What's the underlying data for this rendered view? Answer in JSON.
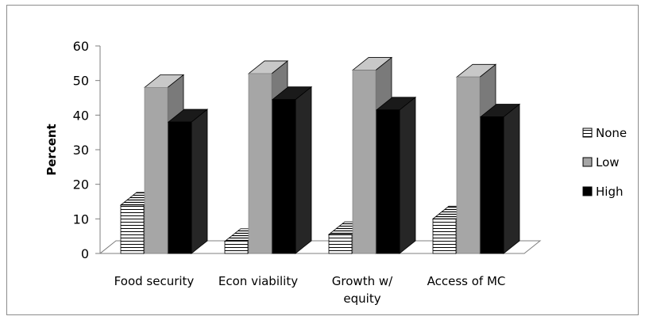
{
  "chart_data": {
    "type": "bar",
    "style": "3d-clustered-column",
    "title": "",
    "xlabel": "",
    "ylabel": "Percent",
    "ylim": [
      0,
      60
    ],
    "yticks": [
      0,
      10,
      20,
      30,
      40,
      50,
      60
    ],
    "categories": [
      [
        "Food security"
      ],
      [
        "Econ viability"
      ],
      [
        "Growth w/",
        "equity"
      ],
      [
        "Access of MC"
      ]
    ],
    "series": [
      {
        "name": "None",
        "values": [
          14,
          3.5,
          5.5,
          10
        ],
        "color": "#ffffff",
        "pattern": "horizontal-stripes"
      },
      {
        "name": "Low",
        "values": [
          48,
          52,
          53,
          51
        ],
        "color": "#a6a6a6"
      },
      {
        "name": "High",
        "values": [
          38,
          44.5,
          41.5,
          39.5
        ],
        "color": "#000000"
      }
    ],
    "grid": false,
    "legend": "right"
  }
}
